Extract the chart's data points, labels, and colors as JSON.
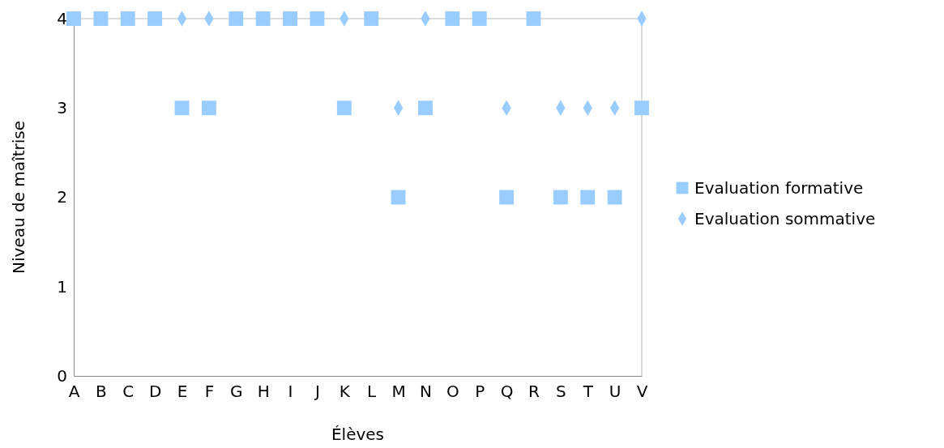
{
  "chart_data": {
    "type": "scatter",
    "xlabel": "Élèves",
    "ylabel": "Niveau de maîtrise",
    "categories": [
      "A",
      "B",
      "C",
      "D",
      "E",
      "F",
      "G",
      "H",
      "I",
      "J",
      "K",
      "L",
      "M",
      "N",
      "O",
      "P",
      "Q",
      "R",
      "S",
      "T",
      "U",
      "V"
    ],
    "ylim": [
      0,
      4
    ],
    "yticks": [
      0,
      1,
      2,
      3,
      4
    ],
    "grid": false,
    "legend": "right",
    "series": [
      {
        "name": "Evaluation formative",
        "color": "#99ccff",
        "marker": "square",
        "values": [
          4,
          4,
          4,
          4,
          3,
          3,
          4,
          4,
          4,
          4,
          3,
          4,
          2,
          3,
          4,
          4,
          2,
          4,
          2,
          2,
          2,
          3
        ]
      },
      {
        "name": "Evaluation sommative",
        "color": "#99ccff",
        "marker": "diamond",
        "values": [
          null,
          null,
          null,
          null,
          4,
          4,
          null,
          null,
          null,
          null,
          4,
          null,
          3,
          4,
          null,
          null,
          3,
          null,
          3,
          3,
          3,
          4
        ]
      }
    ]
  }
}
